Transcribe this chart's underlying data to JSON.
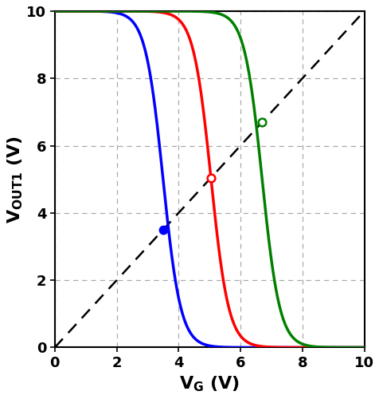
{
  "title": "",
  "xlabel": "V_G (V)",
  "ylabel": "V_{OUT1} (V)",
  "xlim": [
    0,
    10
  ],
  "ylim": [
    0,
    10
  ],
  "xticks": [
    0,
    2,
    4,
    6,
    8,
    10
  ],
  "yticks": [
    0,
    2,
    4,
    6,
    8,
    10
  ],
  "vdd": 10.0,
  "curves": [
    {
      "color": "blue",
      "midpoint": 3.5,
      "steepness": 35.0,
      "intersection": [
        3.5,
        3.5
      ],
      "marker_filled": true
    },
    {
      "color": "red",
      "midpoint": 5.05,
      "steepness": 35.0,
      "intersection": [
        5.05,
        5.05
      ],
      "marker_filled": false
    },
    {
      "color": "green",
      "midpoint": 6.7,
      "steepness": 35.0,
      "intersection": [
        6.7,
        6.7
      ],
      "marker_filled": false
    }
  ],
  "diagonal_color": "black",
  "diagonal_linestyle": "--",
  "grid_linestyle": "--",
  "grid_color": "#aaaaaa",
  "linewidth": 2.5,
  "marker_size": 7,
  "figsize": [
    4.77,
    5.0
  ],
  "dpi": 100
}
